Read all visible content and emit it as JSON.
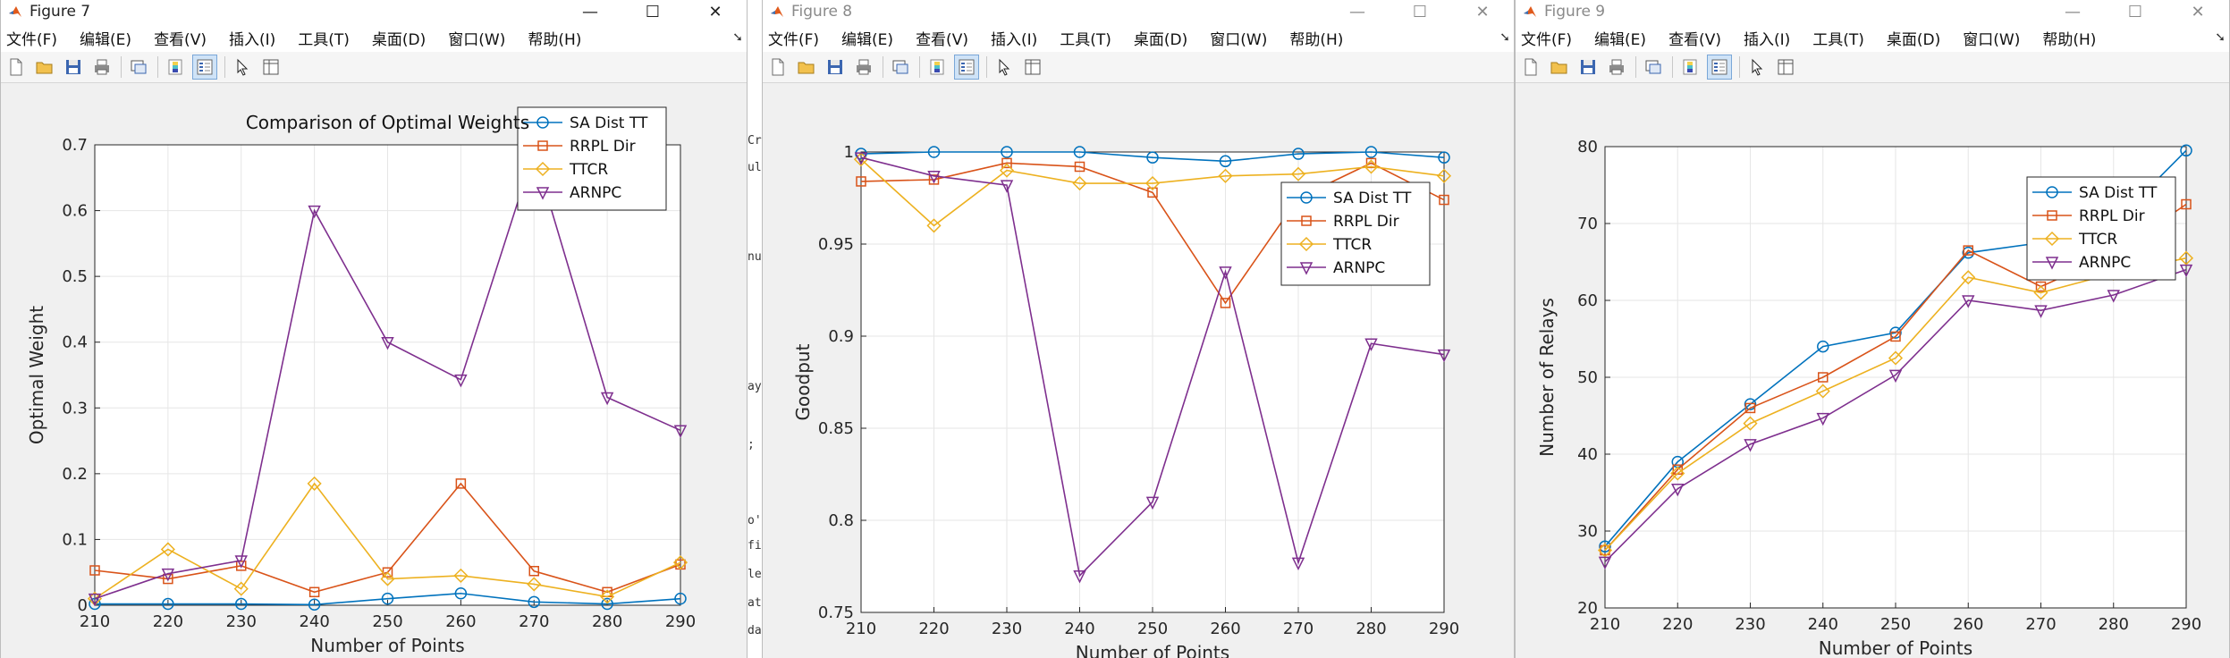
{
  "menu_items": [
    "文件(F)",
    "编辑(E)",
    "查看(V)",
    "插入(I)",
    "工具(T)",
    "桌面(D)",
    "窗口(W)",
    "帮助(H)"
  ],
  "window_controls": {
    "minimize": "—",
    "maximize": "☐",
    "close": "✕"
  },
  "toolbar_icons": [
    "new-file-icon",
    "open-folder-icon",
    "save-icon",
    "print-icon",
    "link-plot-icon",
    "colorbar-icon",
    "legend-icon",
    "pointer-icon",
    "property-editor-icon"
  ],
  "figures": [
    {
      "window_title": "Figure 7",
      "active": true
    },
    {
      "window_title": "Figure 8",
      "active": false
    },
    {
      "window_title": "Figure 9",
      "active": false
    }
  ],
  "background_code_fragments": [
    "Cr",
    "ult",
    "nu",
    "ay",
    ";",
    "o'",
    "fi",
    "le",
    "at",
    "da"
  ],
  "chart_data": [
    {
      "type": "line",
      "title": "Comparison of Optimal Weights",
      "xlabel": "Number of Points",
      "ylabel": "Optimal Weight",
      "x": [
        210,
        220,
        230,
        240,
        250,
        260,
        270,
        280,
        290
      ],
      "xticks": [
        "210",
        "220",
        "230",
        "240",
        "250",
        "260",
        "270",
        "280",
        "290"
      ],
      "xlim": [
        210,
        290
      ],
      "ylim": [
        0,
        0.7
      ],
      "yticks": [
        "0",
        "0.1",
        "0.2",
        "0.3",
        "0.4",
        "0.5",
        "0.6",
        "0.7"
      ],
      "yticks_values": [
        0,
        0.1,
        0.2,
        0.3,
        0.4,
        0.5,
        0.6,
        0.7
      ],
      "grid": true,
      "legend_position": "top-right",
      "series": [
        {
          "name": "SA Dist TT",
          "marker": "circle",
          "color": "#0072BD",
          "values": [
            0.002,
            0.002,
            0.002,
            0.001,
            0.01,
            0.018,
            0.005,
            0.002,
            0.01
          ]
        },
        {
          "name": "RRPL Dir",
          "marker": "square",
          "color": "#D95319",
          "values": [
            0.053,
            0.04,
            0.06,
            0.02,
            0.05,
            0.185,
            0.052,
            0.02,
            0.062
          ]
        },
        {
          "name": "TTCR",
          "marker": "diamond",
          "color": "#EDB120",
          "values": [
            0.01,
            0.085,
            0.025,
            0.185,
            0.04,
            0.045,
            0.032,
            0.013,
            0.065
          ]
        },
        {
          "name": "ARNPC",
          "marker": "triangle-down",
          "color": "#7E2F8E",
          "values": [
            0.01,
            0.048,
            0.068,
            0.6,
            0.4,
            0.343,
            0.69,
            0.316,
            0.266
          ]
        }
      ]
    },
    {
      "type": "line",
      "title": "",
      "xlabel": "Number of Points",
      "ylabel": "Goodput",
      "x": [
        210,
        220,
        230,
        240,
        250,
        260,
        270,
        280,
        290
      ],
      "xticks": [
        "210",
        "220",
        "230",
        "240",
        "250",
        "260",
        "270",
        "280",
        "290"
      ],
      "xlim": [
        210,
        290
      ],
      "ylim": [
        0.75,
        1
      ],
      "yticks": [
        "0.75",
        "0.8",
        "0.85",
        "0.9",
        "0.95",
        "1"
      ],
      "yticks_values": [
        0.75,
        0.8,
        0.85,
        0.9,
        0.95,
        1
      ],
      "grid": true,
      "legend_position": "top-right",
      "series": [
        {
          "name": "SA Dist TT",
          "marker": "circle",
          "color": "#0072BD",
          "values": [
            0.999,
            1.0,
            1.0,
            1.0,
            0.997,
            0.995,
            0.999,
            1.0,
            0.997
          ]
        },
        {
          "name": "RRPL Dir",
          "marker": "square",
          "color": "#D95319",
          "values": [
            0.984,
            0.985,
            0.994,
            0.992,
            0.978,
            0.918,
            0.975,
            0.994,
            0.974
          ]
        },
        {
          "name": "TTCR",
          "marker": "diamond",
          "color": "#EDB120",
          "values": [
            0.996,
            0.96,
            0.99,
            0.983,
            0.983,
            0.987,
            0.988,
            0.992,
            0.987
          ]
        },
        {
          "name": "ARNPC",
          "marker": "triangle-down",
          "color": "#7E2F8E",
          "values": [
            0.997,
            0.987,
            0.982,
            0.77,
            0.81,
            0.935,
            0.777,
            0.896,
            0.89
          ]
        }
      ]
    },
    {
      "type": "line",
      "title": "",
      "xlabel": "Number of Points",
      "ylabel": "Number of Relays",
      "x": [
        210,
        220,
        230,
        240,
        250,
        260,
        270,
        280,
        290
      ],
      "xticks": [
        "210",
        "220",
        "230",
        "240",
        "250",
        "260",
        "270",
        "280",
        "290"
      ],
      "xlim": [
        210,
        290
      ],
      "ylim": [
        20,
        80
      ],
      "yticks": [
        "20",
        "30",
        "40",
        "50",
        "60",
        "70",
        "80"
      ],
      "yticks_values": [
        20,
        30,
        40,
        50,
        60,
        70,
        80
      ],
      "grid": true,
      "legend_position": "top-right",
      "series": [
        {
          "name": "SA Dist TT",
          "marker": "circle",
          "color": "#0072BD",
          "values": [
            28,
            39,
            46.5,
            54,
            55.8,
            66.2,
            67.5,
            70,
            79.5
          ]
        },
        {
          "name": "RRPL Dir",
          "marker": "square",
          "color": "#D95319",
          "values": [
            27.5,
            38,
            46,
            50,
            55.3,
            66.5,
            61.8,
            66,
            72.5
          ]
        },
        {
          "name": "TTCR",
          "marker": "diamond",
          "color": "#EDB120",
          "values": [
            27.5,
            37.5,
            44,
            48.2,
            52.5,
            63,
            61,
            63.5,
            65.5
          ]
        },
        {
          "name": "ARNPC",
          "marker": "triangle-down",
          "color": "#7E2F8E",
          "values": [
            26,
            35.5,
            41.3,
            44.7,
            50.3,
            60,
            58.7,
            60.7,
            64
          ]
        }
      ]
    }
  ]
}
